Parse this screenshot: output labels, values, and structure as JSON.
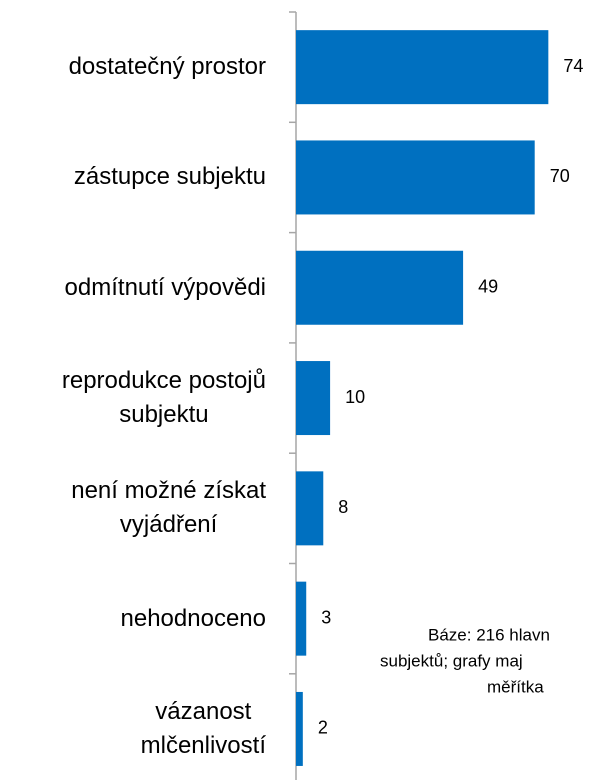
{
  "chart_data": {
    "type": "bar",
    "orientation": "horizontal",
    "categories": [
      "dostatečný prostor",
      "zástupce subjektu",
      "odmítnutí výpovědi",
      "reprodukce postojů\nsubjektu",
      "není možné získat\nvyjádření",
      "nehodnoceno",
      "vázanost\nmlčenlivostí"
    ],
    "values": [
      74,
      70,
      49,
      10,
      8,
      3,
      2
    ],
    "color": "#0070c0",
    "xlim": [
      0,
      100
    ],
    "annotation": [
      "Báze: 216 hlavn",
      "subjektů; grafy maj",
      "měřítka"
    ]
  }
}
